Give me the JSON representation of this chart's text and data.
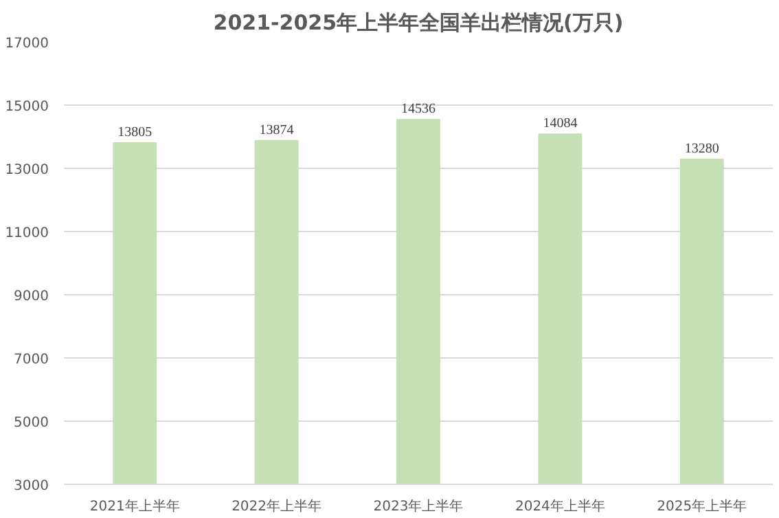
{
  "chart_data": {
    "type": "bar",
    "title": "2021-2025年上半年全国羊出栏情况(万只)",
    "categories": [
      "2021年上半年",
      "2022年上半年",
      "2023年上半年",
      "2024年上半年",
      "2025年上半年"
    ],
    "values": [
      13805,
      13874,
      14536,
      14084,
      13280
    ],
    "color": "#c5e0b4",
    "ylim": [
      3000,
      17000
    ],
    "yticks": [
      3000,
      5000,
      7000,
      9000,
      11000,
      13000,
      15000,
      17000
    ],
    "grid": "y",
    "data_labels": true
  }
}
